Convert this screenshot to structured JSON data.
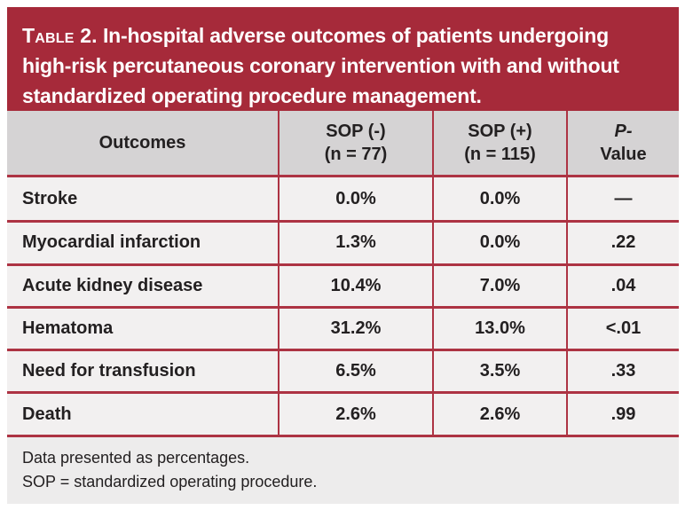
{
  "table": {
    "title_prefix": "Table 2.",
    "title_rest": " In-hospital adverse outcomes of patients undergoing high-risk percutaneous coronary intervention with and without standardized operating procedure management.",
    "columns": {
      "outcomes": "Outcomes",
      "sop_neg_line1": "SOP (-)",
      "sop_neg_line2": "(n = 77)",
      "sop_pos_line1": "SOP (+)",
      "sop_pos_line2": "(n = 115)",
      "pvalue_line1": "P-",
      "pvalue_line2": "Value"
    },
    "rows": [
      {
        "outcome": "Stroke",
        "sop_neg": "0.0%",
        "sop_pos": "0.0%",
        "p": "—"
      },
      {
        "outcome": "Myocardial infarction",
        "sop_neg": "1.3%",
        "sop_pos": "0.0%",
        "p": ".22"
      },
      {
        "outcome": "Acute kidney disease",
        "sop_neg": "10.4%",
        "sop_pos": "7.0%",
        "p": ".04"
      },
      {
        "outcome": "Hematoma",
        "sop_neg": "31.2%",
        "sop_pos": "13.0%",
        "p": "<.01"
      },
      {
        "outcome": "Need for transfusion",
        "sop_neg": "6.5%",
        "sop_pos": "3.5%",
        "p": ".33"
      },
      {
        "outcome": "Death",
        "sop_neg": "2.6%",
        "sop_pos": "2.6%",
        "p": ".99"
      }
    ],
    "footnotes": [
      "Data presented as percentages.",
      "SOP = standardized operating procedure."
    ],
    "colors": {
      "banner_red": "#a62a3a",
      "rule_red": "#ad3343",
      "header_gray": "#d5d3d4",
      "body_gray": "#f2f0f0",
      "footer_gray": "#edecec",
      "text": "#232021"
    }
  }
}
